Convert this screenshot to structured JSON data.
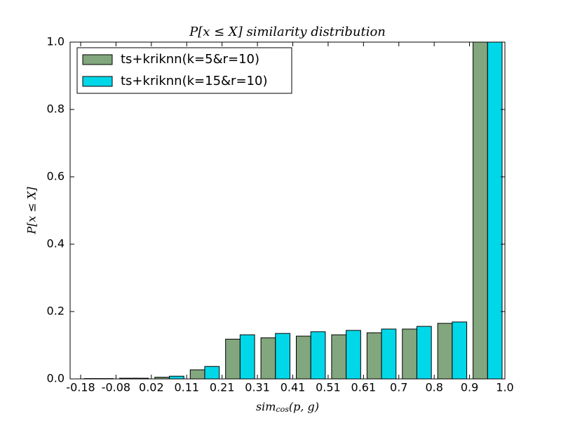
{
  "chart_data": {
    "type": "bar",
    "title": "P[x ≤ X] similarity distribution",
    "ylabel": "P[x ≤ X]",
    "xlabel": [
      "sim",
      "cos",
      "(p, g)"
    ],
    "bin_edges": [
      "-0.18",
      "-0.08",
      "0.02",
      "0.11",
      "0.21",
      "0.31",
      "0.41",
      "0.51",
      "0.61",
      "0.7",
      "0.8",
      "0.9",
      "1.0"
    ],
    "series": [
      {
        "name": "ts+kriknn(k=5&r=10)",
        "color": "#82a67d",
        "values": [
          0.001,
          0.002,
          0.005,
          0.027,
          0.118,
          0.122,
          0.127,
          0.131,
          0.137,
          0.148,
          0.165,
          1.0
        ]
      },
      {
        "name": "ts+kriknn(k=15&r=10)",
        "color": "#00d7e8",
        "values": [
          0.001,
          0.002,
          0.008,
          0.037,
          0.131,
          0.135,
          0.14,
          0.144,
          0.148,
          0.156,
          0.169,
          1.0
        ]
      }
    ],
    "ylim": [
      0,
      1
    ],
    "yticks": [
      {
        "value": 0,
        "label": "0.0"
      },
      0.2,
      0.4,
      0.6,
      0.8,
      {
        "value": 1,
        "label": "1.0"
      }
    ],
    "legend": "upper left"
  }
}
